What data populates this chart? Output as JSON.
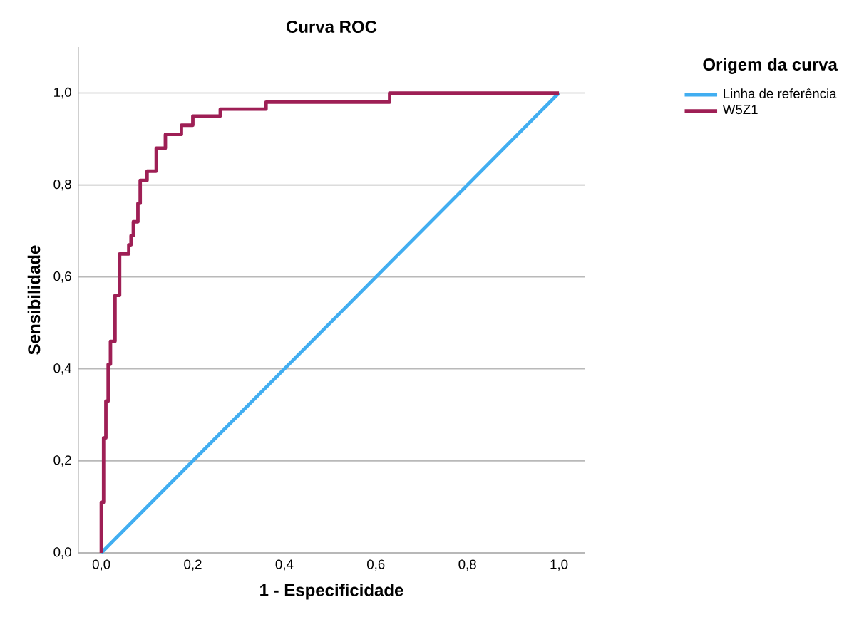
{
  "chart_data": {
    "type": "line",
    "title": "Curva ROC",
    "xlabel": "1 - Especificidade",
    "ylabel": "Sensibilidade",
    "legend_title": "Origem da curva",
    "legend": "right",
    "grid": "y",
    "marker": "none",
    "line_style": "solid",
    "xlim": [
      -0.05,
      1.056
    ],
    "ylim": [
      0,
      1.1
    ],
    "xticks": [
      {
        "value": 0,
        "label": "0,0"
      },
      {
        "value": 0.2,
        "label": "0,2"
      },
      {
        "value": 0.4,
        "label": "0,4"
      },
      {
        "value": 0.6,
        "label": "0,6"
      },
      {
        "value": 0.8,
        "label": "0,8"
      },
      {
        "value": 1,
        "label": "1,0"
      }
    ],
    "yticks": [
      {
        "value": 0,
        "label": "0,0"
      },
      {
        "value": 0.2,
        "label": "0,2"
      },
      {
        "value": 0.4,
        "label": "0,4"
      },
      {
        "value": 0.6,
        "label": "0,6"
      },
      {
        "value": 0.8,
        "label": "0,8"
      },
      {
        "value": 1,
        "label": "1,0"
      }
    ],
    "series": [
      {
        "name": "Linha de referência",
        "color": "#41aef1",
        "x": [
          0,
          1
        ],
        "values": [
          0,
          1
        ]
      },
      {
        "name": "W5Z1",
        "color": "#9e1f55",
        "x": [
          0,
          0,
          0.005,
          0.005,
          0.01,
          0.01,
          0.015,
          0.015,
          0.02,
          0.02,
          0.03,
          0.03,
          0.04,
          0.04,
          0.06,
          0.06,
          0.065,
          0.065,
          0.07,
          0.07,
          0.08,
          0.08,
          0.085,
          0.085,
          0.1,
          0.1,
          0.12,
          0.12,
          0.14,
          0.14,
          0.175,
          0.175,
          0.2,
          0.2,
          0.26,
          0.26,
          0.36,
          0.36,
          0.63,
          0.63,
          1
        ],
        "values": [
          0,
          0.11,
          0.11,
          0.25,
          0.25,
          0.33,
          0.33,
          0.41,
          0.41,
          0.46,
          0.46,
          0.56,
          0.56,
          0.65,
          0.65,
          0.67,
          0.67,
          0.69,
          0.69,
          0.72,
          0.72,
          0.76,
          0.76,
          0.81,
          0.81,
          0.83,
          0.83,
          0.88,
          0.88,
          0.91,
          0.91,
          0.93,
          0.93,
          0.95,
          0.95,
          0.965,
          0.965,
          0.98,
          0.98,
          1,
          1
        ]
      }
    ]
  }
}
